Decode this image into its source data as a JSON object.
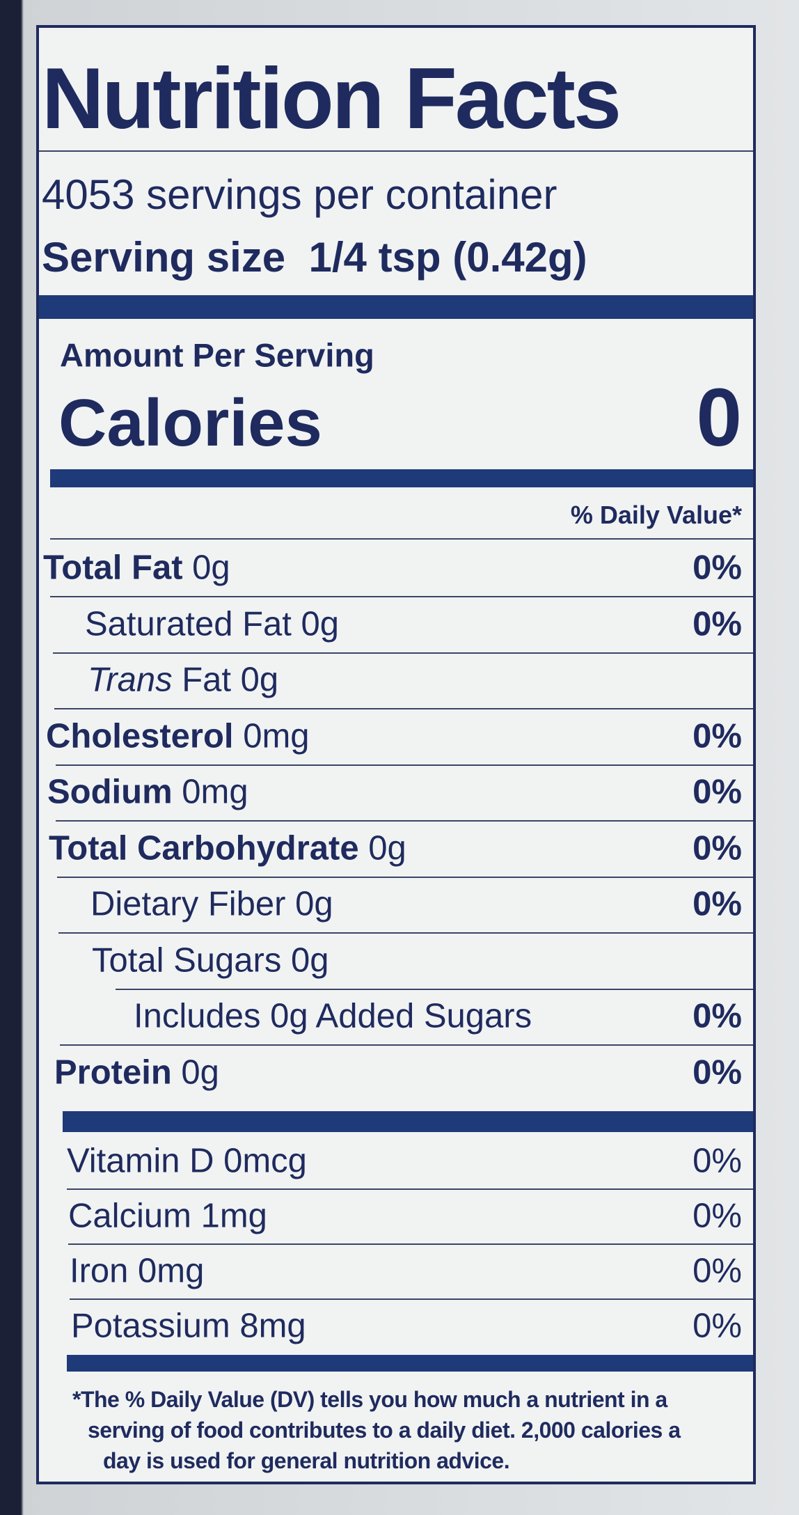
{
  "title": "Nutrition Facts",
  "servings": "4053 servings per container",
  "serving_size": {
    "label": "Serving size",
    "value": "1/4 tsp (0.42g)"
  },
  "amount_per_serving": "Amount Per Serving",
  "calories": {
    "label": "Calories",
    "value": "0"
  },
  "daily_value_header": "% Daily Value*",
  "nutrients": [
    {
      "name": "Total Fat",
      "amount": "0g",
      "dv": "0%"
    },
    {
      "name": "Saturated Fat",
      "amount": "0g",
      "dv": "0%"
    },
    {
      "name": "Trans",
      "amount": "Fat 0g"
    },
    {
      "name": "Cholesterol",
      "amount": "0mg",
      "dv": "0%"
    },
    {
      "name": "Sodium",
      "amount": "0mg",
      "dv": "0%"
    },
    {
      "name": "Total Carbohydrate",
      "amount": "0g",
      "dv": "0%"
    },
    {
      "name": "Dietary Fiber",
      "amount": "0g",
      "dv": "0%"
    },
    {
      "name": "Total Sugars",
      "amount": "0g"
    },
    {
      "name": "Includes 0g Added Sugars",
      "dv": "0%"
    },
    {
      "name": "Protein",
      "amount": "0g",
      "dv": "0%"
    }
  ],
  "vitamins": [
    {
      "name": "Vitamin D 0mcg",
      "dv": "0%"
    },
    {
      "name": "Calcium 1mg",
      "dv": "0%"
    },
    {
      "name": "Iron 0mg",
      "dv": "0%"
    },
    {
      "name": "Potassium 8mg",
      "dv": "0%"
    }
  ],
  "footnote": [
    "*The % Daily Value (DV) tells you how much a nutrient in a",
    "serving of food contributes to a daily diet. 2,000 calories a",
    "day is used for general nutrition advice."
  ]
}
